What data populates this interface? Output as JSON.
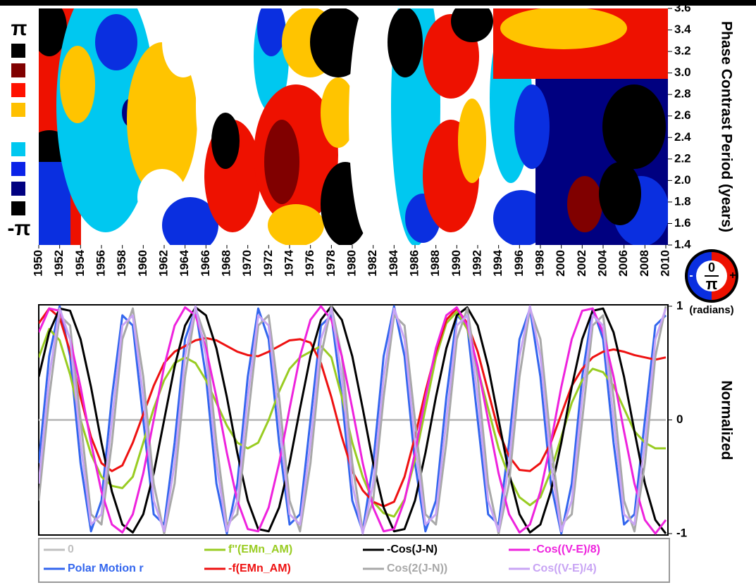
{
  "chart_data": [
    {
      "type": "heatmap",
      "ylabel": "Phase Contrast Period (years)",
      "xlim": [
        1950,
        2010
      ],
      "xticks": [
        1950,
        1952,
        1954,
        1956,
        1958,
        1960,
        1962,
        1964,
        1966,
        1968,
        1970,
        1972,
        1974,
        1976,
        1978,
        1980,
        1982,
        1984,
        1986,
        1988,
        1990,
        1992,
        1994,
        1996,
        1998,
        2000,
        2002,
        2004,
        2006,
        2008,
        2010
      ],
      "ylim": [
        1.4,
        3.6
      ],
      "yticks": [
        1.4,
        1.6,
        1.8,
        {
          "value": 2,
          "label": "2.0"
        },
        2.2,
        2.4,
        2.6,
        2.8,
        {
          "value": 3,
          "label": "3.0"
        },
        3.2,
        3.4,
        3.6
      ],
      "colorbar": {
        "top": "π",
        "bottom": "-π",
        "colors": [
          "#000000",
          "#800000",
          "#ff1100",
          "#ffc000",
          "#ffffff",
          "#00c8f0",
          "#0a22e8",
          "#000080",
          "#000000"
        ]
      },
      "phase_key": {
        "numerator": "0",
        "denominator": "π",
        "minus": "-",
        "plus": "+",
        "unit": "(radians)"
      }
    },
    {
      "type": "line",
      "ylabel": "Normalized",
      "xlim": [
        1950,
        2010
      ],
      "ylim": [
        -1,
        1
      ],
      "yticks": [
        -1,
        0,
        1
      ],
      "x": [
        1950,
        1951,
        1952,
        1953,
        1954,
        1955,
        1956,
        1957,
        1958,
        1959,
        1960,
        1961,
        1962,
        1963,
        1964,
        1965,
        1966,
        1967,
        1968,
        1969,
        1970,
        1971,
        1972,
        1973,
        1974,
        1975,
        1976,
        1977,
        1978,
        1979,
        1980,
        1981,
        1982,
        1983,
        1984,
        1985,
        1986,
        1987,
        1988,
        1989,
        1990,
        1991,
        1992,
        1993,
        1994,
        1995,
        1996,
        1997,
        1998,
        1999,
        2000,
        2001,
        2002,
        2003,
        2004,
        2005,
        2006,
        2007,
        2008,
        2009,
        2010
      ],
      "series": [
        {
          "name": "0",
          "color": "#c0c0c0",
          "values": [
            0,
            0,
            0,
            0,
            0,
            0,
            0,
            0,
            0,
            0,
            0,
            0,
            0,
            0,
            0,
            0,
            0,
            0,
            0,
            0,
            0,
            0,
            0,
            0,
            0,
            0,
            0,
            0,
            0,
            0,
            0,
            0,
            0,
            0,
            0,
            0,
            0,
            0,
            0,
            0,
            0,
            0,
            0,
            0,
            0,
            0,
            0,
            0,
            0,
            0,
            0,
            0,
            0,
            0,
            0,
            0,
            0,
            0,
            0,
            0,
            0
          ]
        },
        {
          "name": "Polar Motion r",
          "color": "#3366ee",
          "values": [
            -0.38,
            0.56,
            1,
            0.56,
            -0.38,
            -0.98,
            -0.71,
            0.2,
            0.92,
            0.83,
            0,
            -0.83,
            -0.92,
            -0.2,
            0.71,
            0.98,
            0.38,
            -0.56,
            -1,
            -0.56,
            0.38,
            0.98,
            0.71,
            -0.2,
            -0.92,
            -0.83,
            0,
            0.83,
            0.92,
            0.2,
            -0.71,
            -0.98,
            -0.38,
            0.56,
            1,
            0.56,
            -0.38,
            -0.98,
            -0.71,
            0.2,
            0.92,
            0.83,
            0,
            -0.83,
            -0.92,
            -0.2,
            0.71,
            0.98,
            0.38,
            -0.56,
            -1,
            -0.56,
            0.38,
            0.98,
            0.71,
            -0.2,
            -0.92,
            -0.83,
            0,
            0.83,
            0.92
          ]
        },
        {
          "name": "f''(EMn_AM)",
          "color": "#99cc22",
          "values": [
            0.55,
            0.8,
            0.7,
            0.4,
            0,
            -0.3,
            -0.5,
            -0.58,
            -0.6,
            -0.5,
            -0.2,
            0.1,
            0.35,
            0.5,
            0.55,
            0.5,
            0.35,
            0.15,
            -0.05,
            -0.2,
            -0.25,
            -0.2,
            0,
            0.25,
            0.45,
            0.55,
            0.6,
            0.65,
            0.55,
            0.2,
            -0.2,
            -0.5,
            -0.72,
            -0.82,
            -0.85,
            -0.7,
            -0.35,
            0.1,
            0.55,
            0.85,
            0.95,
            0.8,
            0.45,
            0.1,
            -0.25,
            -0.5,
            -0.68,
            -0.75,
            -0.68,
            -0.45,
            -0.15,
            0.15,
            0.35,
            0.45,
            0.42,
            0.3,
            0.1,
            -0.1,
            -0.2,
            -0.25,
            -0.25
          ]
        },
        {
          "name": "-f(EMn_AM)",
          "color": "#ee1111",
          "values": [
            0.85,
            0.98,
            0.9,
            0.6,
            0.2,
            -0.15,
            -0.38,
            -0.45,
            -0.4,
            -0.2,
            0.05,
            0.3,
            0.5,
            0.6,
            0.65,
            0.7,
            0.72,
            0.7,
            0.65,
            0.6,
            0.57,
            0.56,
            0.6,
            0.65,
            0.7,
            0.71,
            0.68,
            0.5,
            0.2,
            -0.15,
            -0.45,
            -0.62,
            -0.72,
            -0.76,
            -0.72,
            -0.5,
            -0.15,
            0.25,
            0.6,
            0.88,
            0.98,
            0.85,
            0.6,
            0.25,
            -0.1,
            -0.32,
            -0.44,
            -0.45,
            -0.38,
            -0.2,
            0.05,
            0.3,
            0.45,
            0.55,
            0.6,
            0.62,
            0.6,
            0.57,
            0.55,
            0.53,
            0.55
          ]
        },
        {
          "name": "-Cos(J-N)",
          "color": "#000000",
          "values": [
            0.38,
            0.77,
            0.98,
            0.96,
            0.71,
            0.29,
            -0.2,
            -0.63,
            -0.92,
            -0.99,
            -0.83,
            -0.47,
            0,
            0.47,
            0.83,
            0.99,
            0.92,
            0.63,
            0.2,
            -0.29,
            -0.71,
            -0.96,
            -0.98,
            -0.77,
            -0.38,
            0.1,
            0.56,
            0.88,
            1,
            0.88,
            0.56,
            0.1,
            -0.38,
            -0.77,
            -0.98,
            -0.96,
            -0.71,
            -0.29,
            0.2,
            0.63,
            0.92,
            0.99,
            0.83,
            0.47,
            0,
            -0.47,
            -0.83,
            -0.99,
            -0.92,
            -0.63,
            -0.2,
            0.29,
            0.71,
            0.96,
            0.98,
            0.77,
            0.38,
            -0.1,
            -0.56,
            -0.88,
            -1
          ]
        },
        {
          "name": "Cos(2(J-N))",
          "color": "#a8a8a8",
          "values": [
            -0.71,
            0.2,
            0.92,
            0.83,
            0,
            -0.83,
            -0.92,
            -0.2,
            0.71,
            0.98,
            0.38,
            -0.56,
            -1,
            -0.56,
            0.38,
            0.98,
            0.71,
            -0.2,
            -0.92,
            -0.83,
            0,
            0.83,
            0.92,
            0.2,
            -0.71,
            -0.98,
            -0.38,
            0.56,
            1,
            0.56,
            -0.38,
            -0.98,
            -0.71,
            0.2,
            0.92,
            0.83,
            0,
            -0.83,
            -0.92,
            -0.2,
            0.71,
            0.98,
            0.38,
            -0.56,
            -1,
            -0.56,
            0.38,
            0.98,
            0.71,
            -0.2,
            -0.92,
            -0.83,
            0,
            0.83,
            0.92,
            0.2,
            -0.71,
            -0.98,
            -0.38,
            0.56,
            1
          ]
        },
        {
          "name": "-Cos((V-E)/8)",
          "color": "#ee22dd",
          "values": [
            0.77,
            0.98,
            0.96,
            0.71,
            0.29,
            -0.2,
            -0.63,
            -0.92,
            -0.99,
            -0.83,
            -0.47,
            0,
            0.47,
            0.83,
            0.99,
            0.92,
            0.63,
            0.2,
            -0.29,
            -0.71,
            -0.96,
            -0.98,
            -0.77,
            -0.38,
            0.1,
            0.56,
            0.88,
            1,
            0.88,
            0.56,
            0.1,
            -0.38,
            -0.77,
            -0.98,
            -0.96,
            -0.71,
            -0.29,
            0.2,
            0.63,
            0.92,
            0.99,
            0.83,
            0.47,
            0,
            -0.47,
            -0.83,
            -0.99,
            -0.92,
            -0.63,
            -0.2,
            0.29,
            0.71,
            0.96,
            0.98,
            0.77,
            0.38,
            -0.1,
            -0.56,
            -0.88,
            -1,
            -0.88
          ]
        },
        {
          "name": "Cos((V-E)/4)",
          "color": "#c8a4f4",
          "values": [
            -0.56,
            0.38,
            0.98,
            0.71,
            -0.2,
            -0.92,
            -0.83,
            0,
            0.83,
            0.92,
            0.2,
            -0.71,
            -0.98,
            -0.38,
            0.56,
            1,
            0.56,
            -0.38,
            -0.98,
            -0.71,
            0.2,
            0.92,
            0.83,
            0,
            -0.83,
            -0.92,
            -0.2,
            0.71,
            0.98,
            0.38,
            -0.56,
            -1,
            -0.56,
            0.38,
            0.98,
            0.71,
            -0.2,
            -0.92,
            -0.83,
            0,
            0.83,
            0.92,
            0.2,
            -0.71,
            -0.98,
            -0.38,
            0.56,
            1,
            0.56,
            -0.38,
            -0.98,
            -0.71,
            0.2,
            0.92,
            0.83,
            0,
            -0.83,
            -0.92,
            -0.2,
            0.71,
            0.98
          ]
        }
      ]
    }
  ]
}
